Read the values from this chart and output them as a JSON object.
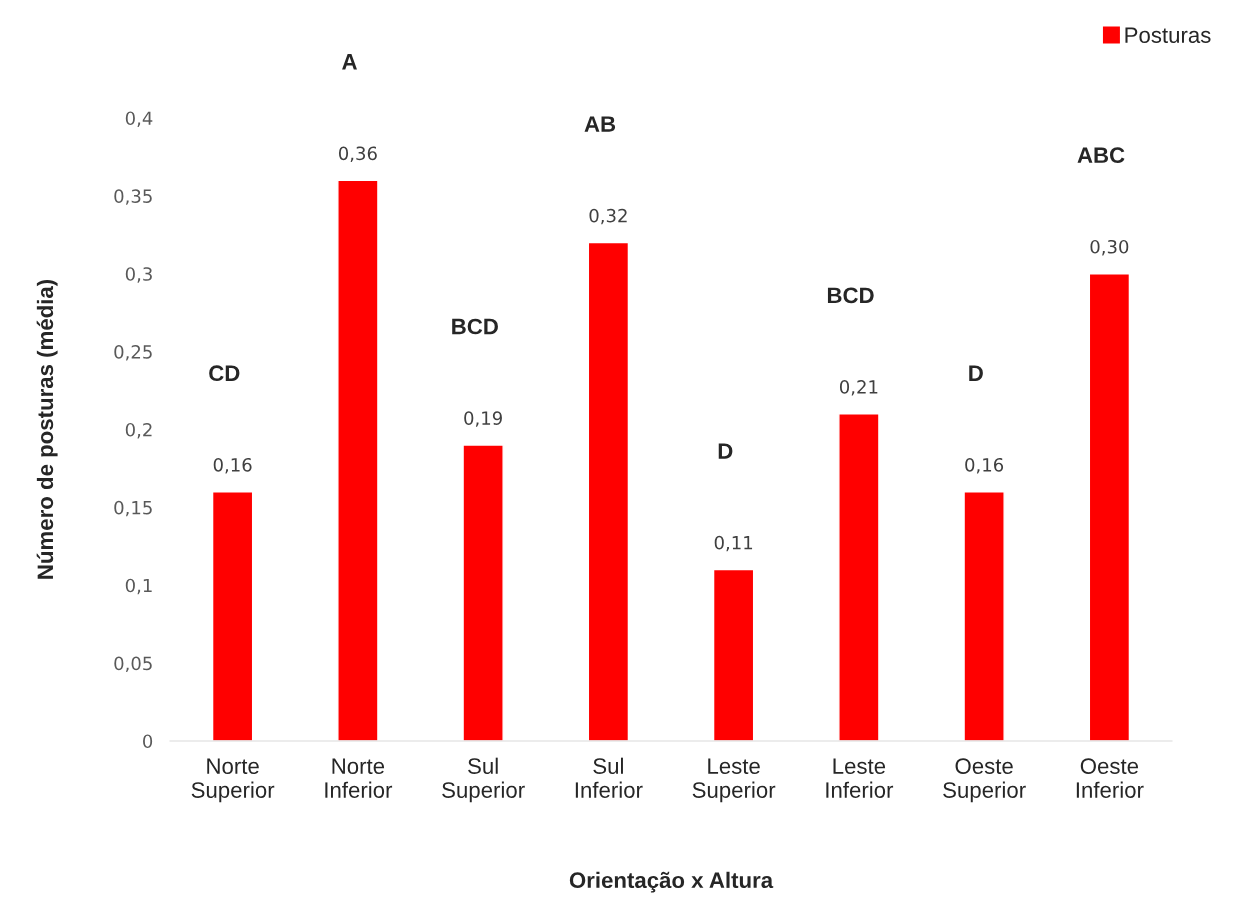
{
  "chart_data": {
    "type": "bar",
    "xlabel": "Orientação x Altura",
    "ylabel": "Número de posturas (média)",
    "categories": [
      "Norte\nSuperior",
      "Norte\nInferior",
      "Sul\nSuperior",
      "Sul\nInferior",
      "Leste\nSuperior",
      "Leste\nInferior",
      "Oeste\nSuperior",
      "Oeste\nInferior"
    ],
    "series": [
      {
        "name": "Posturas",
        "color": "#ff0000",
        "values": [
          0.16,
          0.36,
          0.19,
          0.32,
          0.11,
          0.21,
          0.16,
          0.3
        ],
        "value_labels": [
          "0,16",
          "0,36",
          "0,19",
          "0,32",
          "0,11",
          "0,21",
          "0,16",
          "0,30"
        ]
      }
    ],
    "ylim": [
      0,
      0.4
    ],
    "yticks": [
      0,
      {
        "value": 0.05,
        "label": "0,05"
      },
      {
        "value": 0.1,
        "label": "0,1"
      },
      {
        "value": 0.15,
        "label": "0,15"
      },
      {
        "value": 0.2,
        "label": "0,2"
      },
      {
        "value": 0.25,
        "label": "0,25"
      },
      {
        "value": 0.3,
        "label": "0,3"
      },
      {
        "value": 0.35,
        "label": "0,35"
      },
      {
        "value": 0.4,
        "label": "0,4"
      }
    ],
    "annotations": [
      "CD",
      "A",
      "BCD",
      "AB",
      "D",
      "BCD",
      "D",
      "ABC"
    ],
    "grid": false,
    "legend": "top right"
  }
}
